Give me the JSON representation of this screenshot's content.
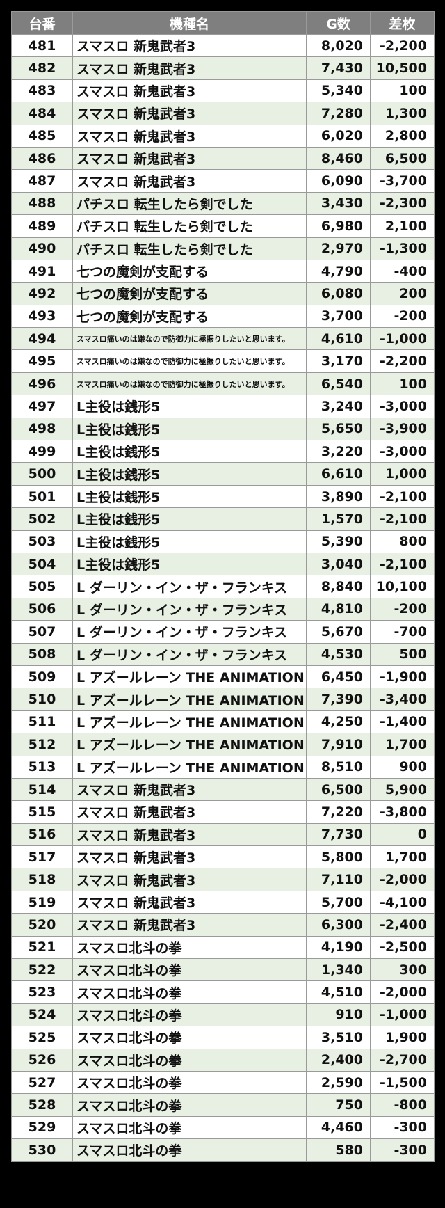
{
  "table": {
    "headers": [
      "台番",
      "機種名",
      "G数",
      "差枚"
    ],
    "rows": [
      {
        "num": "481",
        "name": "スマスロ 新鬼武者3",
        "g": "8,020",
        "diff": "-2,200"
      },
      {
        "num": "482",
        "name": "スマスロ 新鬼武者3",
        "g": "7,430",
        "diff": "10,500"
      },
      {
        "num": "483",
        "name": "スマスロ 新鬼武者3",
        "g": "5,340",
        "diff": "100"
      },
      {
        "num": "484",
        "name": "スマスロ 新鬼武者3",
        "g": "7,280",
        "diff": "1,300"
      },
      {
        "num": "485",
        "name": "スマスロ 新鬼武者3",
        "g": "6,020",
        "diff": "2,800"
      },
      {
        "num": "486",
        "name": "スマスロ 新鬼武者3",
        "g": "8,460",
        "diff": "6,500"
      },
      {
        "num": "487",
        "name": "スマスロ 新鬼武者3",
        "g": "6,090",
        "diff": "-3,700"
      },
      {
        "num": "488",
        "name": "パチスロ 転生したら剣でした",
        "g": "3,430",
        "diff": "-2,300"
      },
      {
        "num": "489",
        "name": "パチスロ 転生したら剣でした",
        "g": "6,980",
        "diff": "2,100"
      },
      {
        "num": "490",
        "name": "パチスロ 転生したら剣でした",
        "g": "2,970",
        "diff": "-1,300"
      },
      {
        "num": "491",
        "name": "七つの魔剣が支配する",
        "g": "4,790",
        "diff": "-400"
      },
      {
        "num": "492",
        "name": "七つの魔剣が支配する",
        "g": "6,080",
        "diff": "200"
      },
      {
        "num": "493",
        "name": "七つの魔剣が支配する",
        "g": "3,700",
        "diff": "-200"
      },
      {
        "num": "494",
        "name": "スマスロ痛いのは嫌なので防御力に極振りしたいと思います。",
        "g": "4,610",
        "diff": "-1,000",
        "small": true
      },
      {
        "num": "495",
        "name": "スマスロ痛いのは嫌なので防御力に極振りしたいと思います。",
        "g": "3,170",
        "diff": "-2,200",
        "small": true
      },
      {
        "num": "496",
        "name": "スマスロ痛いのは嫌なので防御力に極振りしたいと思います。",
        "g": "6,540",
        "diff": "100",
        "small": true
      },
      {
        "num": "497",
        "name": "L主役は銭形5",
        "g": "3,240",
        "diff": "-3,000"
      },
      {
        "num": "498",
        "name": "L主役は銭形5",
        "g": "5,650",
        "diff": "-3,900"
      },
      {
        "num": "499",
        "name": "L主役は銭形5",
        "g": "3,220",
        "diff": "-3,000"
      },
      {
        "num": "500",
        "name": "L主役は銭形5",
        "g": "6,610",
        "diff": "1,000"
      },
      {
        "num": "501",
        "name": "L主役は銭形5",
        "g": "3,890",
        "diff": "-2,100"
      },
      {
        "num": "502",
        "name": "L主役は銭形5",
        "g": "1,570",
        "diff": "-2,100"
      },
      {
        "num": "503",
        "name": "L主役は銭形5",
        "g": "5,390",
        "diff": "800"
      },
      {
        "num": "504",
        "name": "L主役は銭形5",
        "g": "3,040",
        "diff": "-2,100"
      },
      {
        "num": "505",
        "name": "L ダーリン・イン・ザ・フランキス",
        "g": "8,840",
        "diff": "10,100"
      },
      {
        "num": "506",
        "name": "L ダーリン・イン・ザ・フランキス",
        "g": "4,810",
        "diff": "-200"
      },
      {
        "num": "507",
        "name": "L ダーリン・イン・ザ・フランキス",
        "g": "5,670",
        "diff": "-700"
      },
      {
        "num": "508",
        "name": "L ダーリン・イン・ザ・フランキス",
        "g": "4,530",
        "diff": "500"
      },
      {
        "num": "509",
        "name": "L アズールレーン THE ANIMATION",
        "g": "6,450",
        "diff": "-1,900"
      },
      {
        "num": "510",
        "name": "L アズールレーン THE ANIMATION",
        "g": "7,390",
        "diff": "-3,400"
      },
      {
        "num": "511",
        "name": "L アズールレーン THE ANIMATION",
        "g": "4,250",
        "diff": "-1,400"
      },
      {
        "num": "512",
        "name": "L アズールレーン THE ANIMATION",
        "g": "7,910",
        "diff": "1,700"
      },
      {
        "num": "513",
        "name": "L アズールレーン THE ANIMATION",
        "g": "8,510",
        "diff": "900"
      },
      {
        "num": "514",
        "name": "スマスロ 新鬼武者3",
        "g": "6,500",
        "diff": "5,900"
      },
      {
        "num": "515",
        "name": "スマスロ 新鬼武者3",
        "g": "7,220",
        "diff": "-3,800"
      },
      {
        "num": "516",
        "name": "スマスロ 新鬼武者3",
        "g": "7,730",
        "diff": "0"
      },
      {
        "num": "517",
        "name": "スマスロ 新鬼武者3",
        "g": "5,800",
        "diff": "1,700"
      },
      {
        "num": "518",
        "name": "スマスロ 新鬼武者3",
        "g": "7,110",
        "diff": "-2,000"
      },
      {
        "num": "519",
        "name": "スマスロ 新鬼武者3",
        "g": "5,700",
        "diff": "-4,100"
      },
      {
        "num": "520",
        "name": "スマスロ 新鬼武者3",
        "g": "6,300",
        "diff": "-2,400"
      },
      {
        "num": "521",
        "name": "スマスロ北斗の拳",
        "g": "4,190",
        "diff": "-2,500"
      },
      {
        "num": "522",
        "name": "スマスロ北斗の拳",
        "g": "1,340",
        "diff": "300"
      },
      {
        "num": "523",
        "name": "スマスロ北斗の拳",
        "g": "4,510",
        "diff": "-2,000"
      },
      {
        "num": "524",
        "name": "スマスロ北斗の拳",
        "g": "910",
        "diff": "-1,000"
      },
      {
        "num": "525",
        "name": "スマスロ北斗の拳",
        "g": "3,510",
        "diff": "1,900"
      },
      {
        "num": "526",
        "name": "スマスロ北斗の拳",
        "g": "2,400",
        "diff": "-2,700"
      },
      {
        "num": "527",
        "name": "スマスロ北斗の拳",
        "g": "2,590",
        "diff": "-1,500"
      },
      {
        "num": "528",
        "name": "スマスロ北斗の拳",
        "g": "750",
        "diff": "-800"
      },
      {
        "num": "529",
        "name": "スマスロ北斗の拳",
        "g": "4,460",
        "diff": "-300"
      },
      {
        "num": "530",
        "name": "スマスロ北斗の拳",
        "g": "580",
        "diff": "-300"
      }
    ]
  }
}
